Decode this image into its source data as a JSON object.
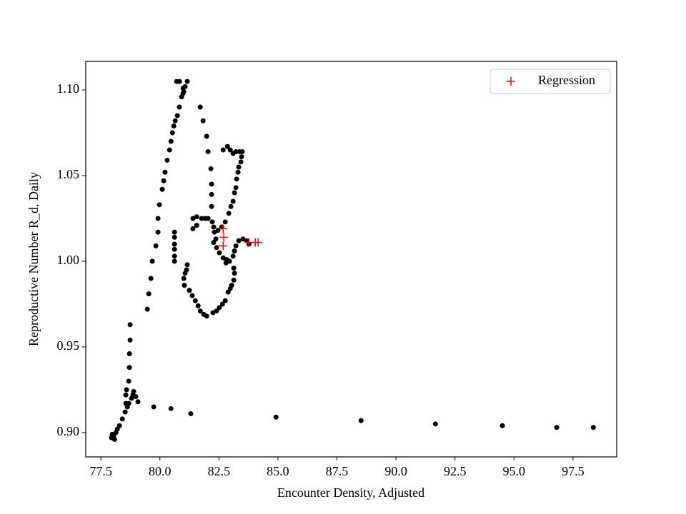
{
  "chart_data": {
    "type": "scatter",
    "xlabel": "Encounter Density, Adjusted",
    "ylabel": "Reproductive Number R_d, Daily",
    "xlim": [
      76.86,
      99.35
    ],
    "ylim": [
      0.8858,
      1.1167
    ],
    "xticks": [
      77.5,
      {
        "value": 80,
        "label": "80.0"
      },
      82.5,
      {
        "value": 85,
        "label": "85.0"
      },
      87.5,
      {
        "value": 90,
        "label": "90.0"
      },
      92.5,
      {
        "value": 95,
        "label": "95.0"
      },
      97.5
    ],
    "yticks": [
      {
        "value": 0.9,
        "label": "0.90"
      },
      0.95,
      {
        "value": 1,
        "label": "1.00"
      },
      1.05,
      {
        "value": 1.1,
        "label": "1.10"
      }
    ],
    "grid": false,
    "legend": "upper right",
    "series": [
      {
        "color": "#000000",
        "marker": "dot",
        "x": [
          98.36,
          96.81,
          94.51,
          91.67,
          88.52,
          84.92,
          81.31,
          80.47,
          79.74,
          77.95,
          77.98,
          78.04,
          78.08,
          78.14,
          78.2,
          78.29,
          78.41,
          78.53,
          78.56,
          78.56,
          78.59,
          78.68,
          78.71,
          78.71,
          78.74,
          78.68,
          78.8,
          78.86,
          78.89,
          78.62,
          79.07,
          78.98,
          78.74,
          79.47,
          79.53,
          79.62,
          79.68,
          79.83,
          79.92,
          79.92,
          79.98,
          80.1,
          80.16,
          80.22,
          80.31,
          80.41,
          80.47,
          80.53,
          80.59,
          80.65,
          80.74,
          80.83,
          80.92,
          81.01,
          81.07,
          81.16,
          80.71,
          80.83,
          80.98,
          80.98,
          81.71,
          81.83,
          81.98,
          82.04,
          82.16,
          82.19,
          82.19,
          82.19,
          82.68,
          82.86,
          82.98,
          83.1,
          83.22,
          83.37,
          83.49,
          83.46,
          83.43,
          83.34,
          83.31,
          83.25,
          83.22,
          83.16,
          83.1,
          83.01,
          82.92,
          82.77,
          82.62,
          82.46,
          81.4,
          81.56,
          81.77,
          81.92,
          82.04,
          82.22,
          82.28,
          82.31,
          82.37,
          81.4,
          81.56,
          82.28,
          82.4,
          82.52,
          82.68,
          82.8,
          82.95,
          83.1,
          83.16,
          83.22,
          83.34,
          83.52,
          83.68,
          83.77,
          83.13,
          82.83,
          81.16,
          81.13,
          81.07,
          81.01,
          81.04,
          81.25,
          81.37,
          81.5,
          81.62,
          81.71,
          81.86,
          81.98,
          82.25,
          82.4,
          82.52,
          82.65,
          82.77,
          82.89,
          82.98,
          83.04,
          83.13,
          83.16,
          80.62,
          80.62,
          80.62,
          80.62,
          80.62,
          80.62
        ],
        "values": [
          0.903,
          0.903,
          0.904,
          0.905,
          0.907,
          0.909,
          0.911,
          0.914,
          0.915,
          0.897,
          0.899,
          0.898,
          0.896,
          0.9,
          0.902,
          0.904,
          0.908,
          0.912,
          0.917,
          0.922,
          0.925,
          0.93,
          0.938,
          0.946,
          0.954,
          0.917,
          0.92,
          0.922,
          0.924,
          0.915,
          0.918,
          0.921,
          0.963,
          0.972,
          0.981,
          0.99,
          1.0,
          1.009,
          1.017,
          1.025,
          1.033,
          1.042,
          1.047,
          1.052,
          1.059,
          1.065,
          1.07,
          1.075,
          1.079,
          1.082,
          1.085,
          1.09,
          1.096,
          1.099,
          1.102,
          1.105,
          1.105,
          1.105,
          1.101,
          1.098,
          1.09,
          1.082,
          1.073,
          1.064,
          1.054,
          1.045,
          1.039,
          1.032,
          1.065,
          1.067,
          1.065,
          1.063,
          1.064,
          1.064,
          1.064,
          1.061,
          1.058,
          1.055,
          1.052,
          1.048,
          1.043,
          1.04,
          1.035,
          1.032,
          1.028,
          1.023,
          1.02,
          1.018,
          1.025,
          1.026,
          1.025,
          1.025,
          1.025,
          1.023,
          1.02,
          1.017,
          1.013,
          1.019,
          1.021,
          1.011,
          1.008,
          1.005,
          1.002,
          0.999,
          1.0,
          1.003,
          1.006,
          1.009,
          1.012,
          1.013,
          1.012,
          1.01,
          0.996,
          1.001,
          0.998,
          0.995,
          0.993,
          0.99,
          0.986,
          0.983,
          0.98,
          0.977,
          0.974,
          0.971,
          0.969,
          0.968,
          0.97,
          0.971,
          0.973,
          0.975,
          0.977,
          0.982,
          0.984,
          0.986,
          0.989,
          0.993,
          1.017,
          1.014,
          1.01,
          1.007,
          1.003,
          1.0
        ]
      },
      {
        "name": "Regression",
        "color": "#ff0000",
        "marker": "plus",
        "x": [
          82.68,
          82.71,
          82.68,
          83.77,
          84.04,
          84.16
        ],
        "values": [
          1.019,
          1.014,
          1.009,
          1.011,
          1.011,
          1.011
        ]
      }
    ]
  }
}
